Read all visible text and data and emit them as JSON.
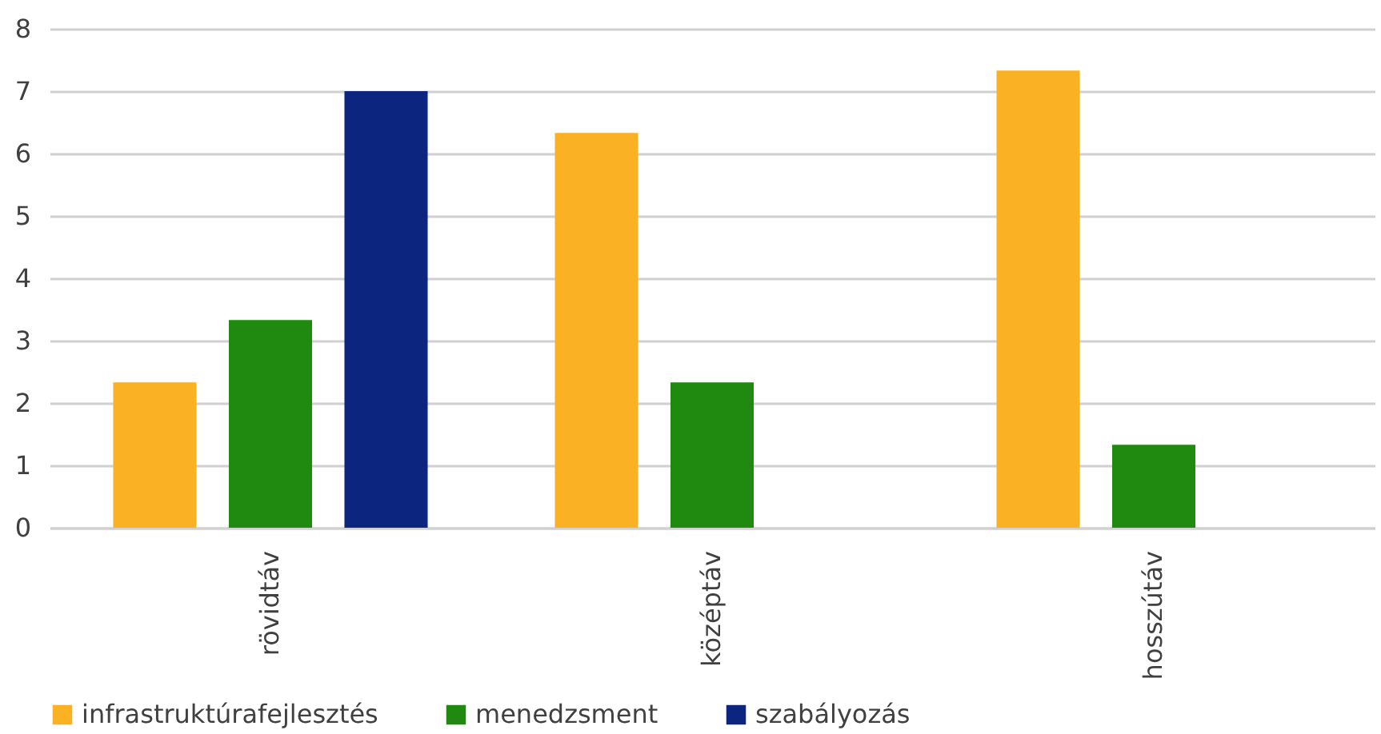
{
  "chart_data": {
    "type": "bar",
    "categories": [
      "rövidtáv",
      "középtáv",
      "hosszútáv"
    ],
    "series": [
      {
        "name": "infrastruktúrafejlesztés",
        "color": "#fbb124",
        "values": [
          2.33,
          6.33,
          7.33
        ]
      },
      {
        "name": "menedzsment",
        "color": "#1f8a0f",
        "values": [
          3.33,
          2.33,
          1.33
        ]
      },
      {
        "name": "szabályozás",
        "color": "#0c2680",
        "values": [
          7,
          null,
          null
        ]
      }
    ],
    "ylim": [
      0,
      8
    ],
    "yticks": [
      0,
      1,
      2,
      3,
      4,
      5,
      6,
      7,
      8
    ],
    "grid": "y",
    "legend": "bottom"
  }
}
